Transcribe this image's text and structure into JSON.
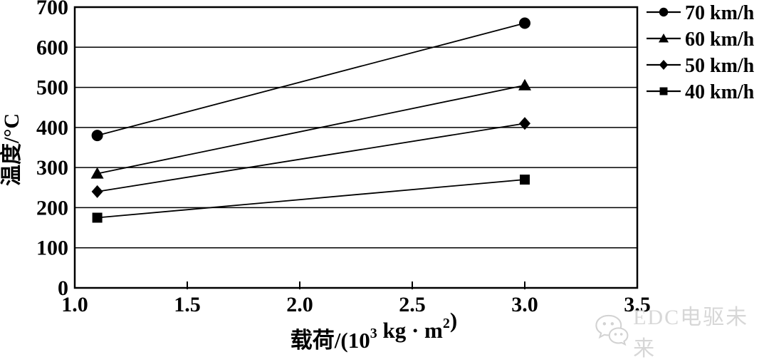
{
  "chart_data": {
    "type": "line",
    "title": "",
    "ylabel": "温度/°C",
    "xlabel": "载荷/(10³ kg·m²)",
    "xlabel_parts": [
      {
        "t": "载荷/(10",
        "sup": false
      },
      {
        "t": "3",
        "sup": true
      },
      {
        "t": " kg · m",
        "sup": false
      },
      {
        "t": "2",
        "sup": true
      },
      {
        "t": ")",
        "sup": false
      }
    ],
    "x": [
      1.1,
      3.0
    ],
    "xlim": [
      1.0,
      3.5
    ],
    "ylim": [
      0,
      700
    ],
    "x_ticks": [
      1.0,
      1.5,
      2.0,
      2.5,
      3.0,
      3.5
    ],
    "x_tick_labels": [
      "1.0",
      "1.5",
      "2.0",
      "2.5",
      "3.0",
      "3.5"
    ],
    "y_ticks": [
      0,
      100,
      200,
      300,
      400,
      500,
      600,
      700
    ],
    "y_tick_labels": [
      "0",
      "100",
      "200",
      "300",
      "400",
      "500",
      "600",
      "700"
    ],
    "grid": "horizontal-only",
    "legend_position": "outside-top-right",
    "series": [
      {
        "name": "70 km/h",
        "marker": "circle",
        "values": [
          380,
          660
        ]
      },
      {
        "name": "60 km/h",
        "marker": "triangle",
        "values": [
          285,
          505
        ]
      },
      {
        "name": "50 km/h",
        "marker": "diamond",
        "values": [
          240,
          410
        ]
      },
      {
        "name": "40 km/h",
        "marker": "square",
        "values": [
          175,
          270
        ]
      }
    ],
    "colors": {
      "series": "#000000",
      "text": "#000000",
      "grid": "#000000",
      "frame": "#000000",
      "background": "#ffffff"
    }
  },
  "watermark": {
    "text": "EDC电驱未来",
    "icon": "wechat-icon",
    "color": "#d7d7d7"
  }
}
